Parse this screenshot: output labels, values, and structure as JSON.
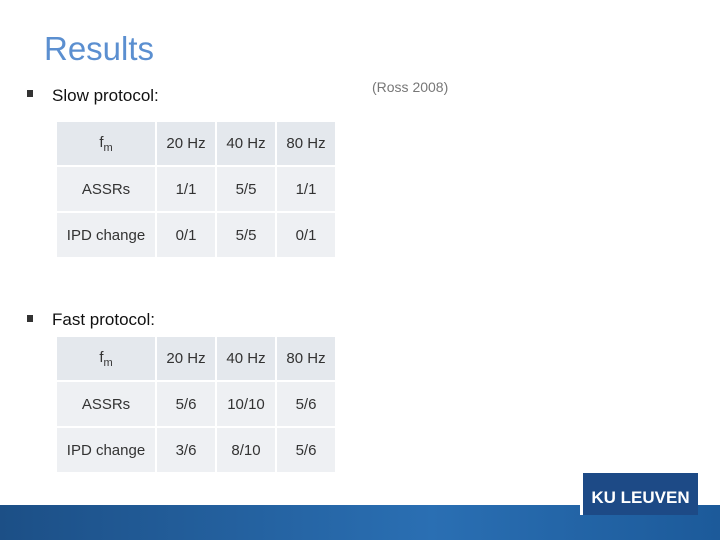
{
  "title": "Results",
  "citation": "(Ross 2008)",
  "sections": [
    {
      "heading": "Slow protocol:",
      "table": {
        "header": [
          {
            "main": "f",
            "sub": "m"
          },
          "20 Hz",
          "40 Hz",
          "80 Hz"
        ],
        "rows": [
          [
            "ASSRs",
            "1/1",
            "5/5",
            "1/1"
          ],
          [
            "IPD change",
            "0/1",
            "5/5",
            "0/1"
          ]
        ]
      }
    },
    {
      "heading": "Fast protocol:",
      "table": {
        "header": [
          {
            "main": "f",
            "sub": "m"
          },
          "20 Hz",
          "40 Hz",
          "80 Hz"
        ],
        "rows": [
          [
            "ASSRs",
            "5/6",
            "10/10",
            "5/6"
          ],
          [
            "IPD change",
            "3/6",
            "8/10",
            "5/6"
          ]
        ]
      }
    }
  ],
  "logo": "KU LEUVEN"
}
